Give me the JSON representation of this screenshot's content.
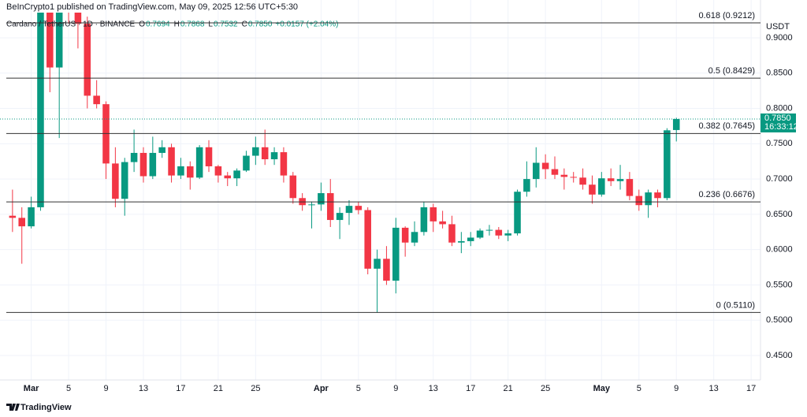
{
  "header": {
    "attribution": "BeInCrypto1 published on TradingView.com, May 09, 2025 12:56 UTC+5:30",
    "footer": "TradingView"
  },
  "chart_data": {
    "type": "candlestick",
    "symbol": "Cardano / TetherUS · 1D · BINANCE",
    "legend": [
      [
        "O",
        "0.7694"
      ],
      [
        "H",
        "0.7868"
      ],
      [
        "L",
        "0.7532"
      ],
      [
        "C",
        "0.7850"
      ]
    ],
    "change": "+0.0157 (+2.04%)",
    "y_axis_label": "USDT",
    "up_color": "#089981",
    "down_color": "#f23645",
    "grid": true,
    "x": [
      "Feb 27",
      "Feb 28",
      "Mar 1",
      "Mar 2",
      "Mar 3",
      "Mar 4",
      "Mar 5",
      "Mar 6",
      "Mar 7",
      "Mar 8",
      "Mar 9",
      "Mar 10",
      "Mar 11",
      "Mar 12",
      "Mar 13",
      "Mar 14",
      "Mar 15",
      "Mar 16",
      "Mar 17",
      "Mar 18",
      "Mar 19",
      "Mar 20",
      "Mar 21",
      "Mar 22",
      "Mar 23",
      "Mar 24",
      "Mar 25",
      "Mar 26",
      "Mar 27",
      "Mar 28",
      "Mar 29",
      "Mar 30",
      "Mar 31",
      "Apr 1",
      "Apr 2",
      "Apr 3",
      "Apr 4",
      "Apr 5",
      "Apr 6",
      "Apr 7",
      "Apr 8",
      "Apr 9",
      "Apr 10",
      "Apr 11",
      "Apr 12",
      "Apr 13",
      "Apr 14",
      "Apr 15",
      "Apr 16",
      "Apr 17",
      "Apr 18",
      "Apr 19",
      "Apr 20",
      "Apr 21",
      "Apr 22",
      "Apr 23",
      "Apr 24",
      "Apr 25",
      "Apr 26",
      "Apr 27",
      "Apr 28",
      "Apr 29",
      "Apr 30",
      "May 1",
      "May 2",
      "May 3",
      "May 4",
      "May 5",
      "May 6",
      "May 7",
      "May 8",
      "May 9"
    ],
    "open": [
      0.648,
      0.645,
      0.633,
      0.66,
      0.95,
      0.858,
      0.98,
      0.95,
      0.92,
      0.818,
      0.806,
      0.722,
      0.672,
      0.724,
      0.737,
      0.704,
      0.737,
      0.745,
      0.705,
      0.718,
      0.702,
      0.745,
      0.718,
      0.705,
      0.701,
      0.712,
      0.733,
      0.745,
      0.728,
      0.738,
      0.705,
      0.673,
      0.663,
      0.664,
      0.68,
      0.642,
      0.652,
      0.662,
      0.656,
      0.573,
      0.587,
      0.556,
      0.631,
      0.61,
      0.625,
      0.66,
      0.64,
      0.636,
      0.61,
      0.612,
      0.617,
      0.627,
      0.628,
      0.62,
      0.623,
      0.682,
      0.7,
      0.723,
      0.714,
      0.706,
      0.703,
      0.702,
      0.692,
      0.678,
      0.701,
      0.697,
      0.7,
      0.676,
      0.663,
      0.681,
      0.673,
      0.7694
    ],
    "high": [
      0.685,
      0.66,
      0.675,
      1.17,
      1.0,
      1.0,
      1.03,
      0.96,
      0.93,
      0.84,
      0.81,
      0.745,
      0.73,
      0.77,
      0.745,
      0.76,
      0.755,
      0.75,
      0.73,
      0.725,
      0.748,
      0.755,
      0.72,
      0.71,
      0.715,
      0.74,
      0.76,
      0.77,
      0.745,
      0.745,
      0.71,
      0.68,
      0.668,
      0.695,
      0.7,
      0.66,
      0.67,
      0.668,
      0.66,
      0.6,
      0.605,
      0.645,
      0.633,
      0.64,
      0.668,
      0.665,
      0.655,
      0.648,
      0.625,
      0.625,
      0.63,
      0.635,
      0.632,
      0.628,
      0.685,
      0.725,
      0.745,
      0.735,
      0.732,
      0.715,
      0.71,
      0.715,
      0.705,
      0.71,
      0.715,
      0.72,
      0.71,
      0.685,
      0.685,
      0.685,
      0.772,
      0.7868
    ],
    "low": [
      0.625,
      0.58,
      0.63,
      0.655,
      0.823,
      0.758,
      0.92,
      0.885,
      0.8,
      0.8,
      0.7,
      0.66,
      0.648,
      0.71,
      0.695,
      0.7,
      0.73,
      0.695,
      0.7,
      0.685,
      0.7,
      0.71,
      0.695,
      0.69,
      0.69,
      0.71,
      0.72,
      0.72,
      0.72,
      0.695,
      0.665,
      0.655,
      0.63,
      0.655,
      0.632,
      0.615,
      0.635,
      0.65,
      0.565,
      0.511,
      0.55,
      0.538,
      0.59,
      0.605,
      0.62,
      0.625,
      0.63,
      0.605,
      0.595,
      0.605,
      0.615,
      0.62,
      0.615,
      0.612,
      0.62,
      0.675,
      0.688,
      0.7,
      0.7,
      0.685,
      0.695,
      0.685,
      0.665,
      0.675,
      0.69,
      0.685,
      0.67,
      0.655,
      0.645,
      0.66,
      0.67,
      0.7532
    ],
    "close": [
      0.645,
      0.633,
      0.66,
      0.95,
      0.858,
      0.98,
      0.95,
      0.92,
      0.818,
      0.806,
      0.722,
      0.672,
      0.724,
      0.737,
      0.704,
      0.737,
      0.745,
      0.705,
      0.718,
      0.702,
      0.745,
      0.718,
      0.705,
      0.701,
      0.712,
      0.733,
      0.745,
      0.728,
      0.738,
      0.705,
      0.673,
      0.663,
      0.664,
      0.68,
      0.642,
      0.652,
      0.662,
      0.656,
      0.573,
      0.587,
      0.556,
      0.631,
      0.61,
      0.625,
      0.66,
      0.64,
      0.636,
      0.61,
      0.612,
      0.617,
      0.627,
      0.628,
      0.62,
      0.623,
      0.682,
      0.7,
      0.723,
      0.714,
      0.706,
      0.703,
      0.702,
      0.692,
      0.678,
      0.701,
      0.697,
      0.7,
      0.676,
      0.663,
      0.681,
      0.673,
      0.769,
      0.785
    ],
    "xlim": [
      "Feb 26",
      "May 18"
    ],
    "xticks": [
      {
        "value": "Mar 1",
        "label": "Mar"
      },
      {
        "value": "Mar 5",
        "label": "5"
      },
      {
        "value": "Mar 9",
        "label": "9"
      },
      {
        "value": "Mar 13",
        "label": "13"
      },
      {
        "value": "Mar 17",
        "label": "17"
      },
      {
        "value": "Mar 21",
        "label": "21"
      },
      {
        "value": "Mar 25",
        "label": "25"
      },
      {
        "value": "Apr 1",
        "label": "Apr"
      },
      {
        "value": "Apr 5",
        "label": "5"
      },
      {
        "value": "Apr 9",
        "label": "9"
      },
      {
        "value": "Apr 13",
        "label": "13"
      },
      {
        "value": "Apr 17",
        "label": "17"
      },
      {
        "value": "Apr 21",
        "label": "21"
      },
      {
        "value": "Apr 25",
        "label": "25"
      },
      {
        "value": "May 1",
        "label": "May"
      },
      {
        "value": "May 5",
        "label": "5"
      },
      {
        "value": "May 9",
        "label": "9"
      },
      {
        "value": "May 13",
        "label": "13"
      },
      {
        "value": "May 17",
        "label": "17"
      }
    ],
    "ylim": [
      0.4154,
      0.9357
    ],
    "yticks": [
      {
        "value": 0.45,
        "label": "0.4500"
      },
      {
        "value": 0.5,
        "label": "0.5000"
      },
      {
        "value": 0.55,
        "label": "0.5500"
      },
      {
        "value": 0.6,
        "label": "0.6000"
      },
      {
        "value": 0.65,
        "label": "0.6500"
      },
      {
        "value": 0.7,
        "label": "0.7000"
      },
      {
        "value": 0.75,
        "label": "0.7500"
      },
      {
        "value": 0.8,
        "label": "0.8000"
      },
      {
        "value": 0.85,
        "label": "0.8500"
      },
      {
        "value": 0.9,
        "label": "0.9000"
      }
    ],
    "last_price": {
      "value": 0.785,
      "label": "0.7850",
      "countdown": "16:33:12"
    },
    "fib_levels": [
      {
        "value": 0.9212,
        "label": "0.618 (0.9212)"
      },
      {
        "value": 0.8429,
        "label": "0.5 (0.8429)"
      },
      {
        "value": 0.7645,
        "label": "0.382 (0.7645)"
      },
      {
        "value": 0.6676,
        "label": "0.236 (0.6676)"
      },
      {
        "value": 0.511,
        "label": "0 (0.5110)"
      }
    ]
  }
}
